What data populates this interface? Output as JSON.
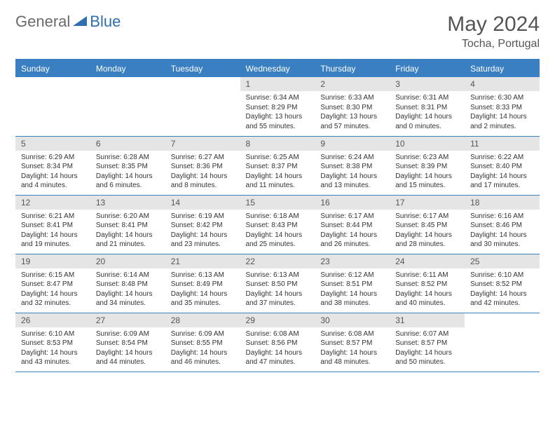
{
  "logo": {
    "text_general": "General",
    "text_blue": "Blue"
  },
  "title": "May 2024",
  "location": "Tocha, Portugal",
  "colors": {
    "header_bg": "#3a7fc2",
    "header_text": "#ffffff",
    "daynum_bg": "#e5e5e5",
    "border": "#3a7fc2",
    "logo_gray": "#6a6a6a",
    "logo_blue": "#2f6fb0"
  },
  "day_headers": [
    "Sunday",
    "Monday",
    "Tuesday",
    "Wednesday",
    "Thursday",
    "Friday",
    "Saturday"
  ],
  "weeks": [
    [
      null,
      null,
      null,
      {
        "n": "1",
        "sr": "6:34 AM",
        "ss": "8:29 PM",
        "dl": "13 hours and 55 minutes."
      },
      {
        "n": "2",
        "sr": "6:33 AM",
        "ss": "8:30 PM",
        "dl": "13 hours and 57 minutes."
      },
      {
        "n": "3",
        "sr": "6:31 AM",
        "ss": "8:31 PM",
        "dl": "14 hours and 0 minutes."
      },
      {
        "n": "4",
        "sr": "6:30 AM",
        "ss": "8:33 PM",
        "dl": "14 hours and 2 minutes."
      }
    ],
    [
      {
        "n": "5",
        "sr": "6:29 AM",
        "ss": "8:34 PM",
        "dl": "14 hours and 4 minutes."
      },
      {
        "n": "6",
        "sr": "6:28 AM",
        "ss": "8:35 PM",
        "dl": "14 hours and 6 minutes."
      },
      {
        "n": "7",
        "sr": "6:27 AM",
        "ss": "8:36 PM",
        "dl": "14 hours and 8 minutes."
      },
      {
        "n": "8",
        "sr": "6:25 AM",
        "ss": "8:37 PM",
        "dl": "14 hours and 11 minutes."
      },
      {
        "n": "9",
        "sr": "6:24 AM",
        "ss": "8:38 PM",
        "dl": "14 hours and 13 minutes."
      },
      {
        "n": "10",
        "sr": "6:23 AM",
        "ss": "8:39 PM",
        "dl": "14 hours and 15 minutes."
      },
      {
        "n": "11",
        "sr": "6:22 AM",
        "ss": "8:40 PM",
        "dl": "14 hours and 17 minutes."
      }
    ],
    [
      {
        "n": "12",
        "sr": "6:21 AM",
        "ss": "8:41 PM",
        "dl": "14 hours and 19 minutes."
      },
      {
        "n": "13",
        "sr": "6:20 AM",
        "ss": "8:41 PM",
        "dl": "14 hours and 21 minutes."
      },
      {
        "n": "14",
        "sr": "6:19 AM",
        "ss": "8:42 PM",
        "dl": "14 hours and 23 minutes."
      },
      {
        "n": "15",
        "sr": "6:18 AM",
        "ss": "8:43 PM",
        "dl": "14 hours and 25 minutes."
      },
      {
        "n": "16",
        "sr": "6:17 AM",
        "ss": "8:44 PM",
        "dl": "14 hours and 26 minutes."
      },
      {
        "n": "17",
        "sr": "6:17 AM",
        "ss": "8:45 PM",
        "dl": "14 hours and 28 minutes."
      },
      {
        "n": "18",
        "sr": "6:16 AM",
        "ss": "8:46 PM",
        "dl": "14 hours and 30 minutes."
      }
    ],
    [
      {
        "n": "19",
        "sr": "6:15 AM",
        "ss": "8:47 PM",
        "dl": "14 hours and 32 minutes."
      },
      {
        "n": "20",
        "sr": "6:14 AM",
        "ss": "8:48 PM",
        "dl": "14 hours and 34 minutes."
      },
      {
        "n": "21",
        "sr": "6:13 AM",
        "ss": "8:49 PM",
        "dl": "14 hours and 35 minutes."
      },
      {
        "n": "22",
        "sr": "6:13 AM",
        "ss": "8:50 PM",
        "dl": "14 hours and 37 minutes."
      },
      {
        "n": "23",
        "sr": "6:12 AM",
        "ss": "8:51 PM",
        "dl": "14 hours and 38 minutes."
      },
      {
        "n": "24",
        "sr": "6:11 AM",
        "ss": "8:52 PM",
        "dl": "14 hours and 40 minutes."
      },
      {
        "n": "25",
        "sr": "6:10 AM",
        "ss": "8:52 PM",
        "dl": "14 hours and 42 minutes."
      }
    ],
    [
      {
        "n": "26",
        "sr": "6:10 AM",
        "ss": "8:53 PM",
        "dl": "14 hours and 43 minutes."
      },
      {
        "n": "27",
        "sr": "6:09 AM",
        "ss": "8:54 PM",
        "dl": "14 hours and 44 minutes."
      },
      {
        "n": "28",
        "sr": "6:09 AM",
        "ss": "8:55 PM",
        "dl": "14 hours and 46 minutes."
      },
      {
        "n": "29",
        "sr": "6:08 AM",
        "ss": "8:56 PM",
        "dl": "14 hours and 47 minutes."
      },
      {
        "n": "30",
        "sr": "6:08 AM",
        "ss": "8:57 PM",
        "dl": "14 hours and 48 minutes."
      },
      {
        "n": "31",
        "sr": "6:07 AM",
        "ss": "8:57 PM",
        "dl": "14 hours and 50 minutes."
      },
      null
    ]
  ],
  "labels": {
    "sunrise": "Sunrise: ",
    "sunset": "Sunset: ",
    "daylight": "Daylight: "
  }
}
